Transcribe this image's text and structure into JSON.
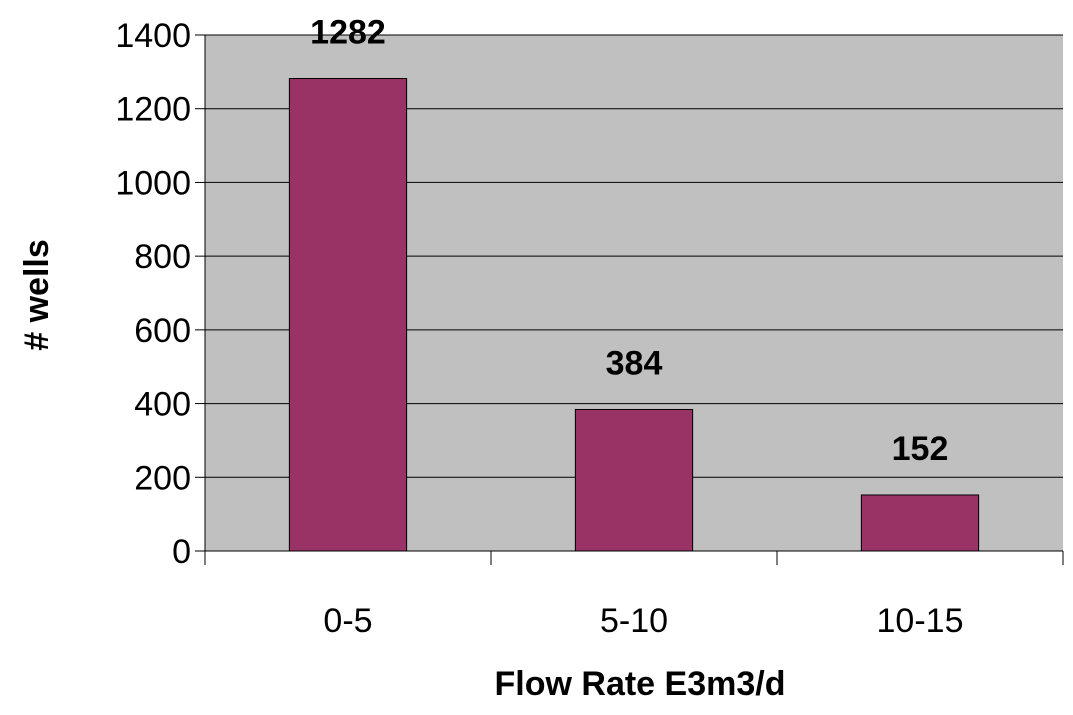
{
  "chart_data": {
    "type": "bar",
    "title": "",
    "xlabel": "Flow Rate E3m3/d",
    "ylabel": "# wells",
    "categories": [
      "0-5",
      "5-10",
      "10-15"
    ],
    "values": [
      1282,
      384,
      152
    ],
    "data_labels": [
      "1282",
      "384",
      "152"
    ],
    "ylim": [
      0,
      1400
    ],
    "yticks": [
      0,
      200,
      400,
      600,
      800,
      1000,
      1200,
      1400
    ],
    "ytick_labels": [
      "0",
      "200",
      "400",
      "600",
      "800",
      "1000",
      "1200",
      "1400"
    ],
    "grid": true,
    "legend": "none",
    "colors": {
      "bar": "#993366",
      "plot_background": "#c0c0c0",
      "grid": "#000000"
    }
  }
}
